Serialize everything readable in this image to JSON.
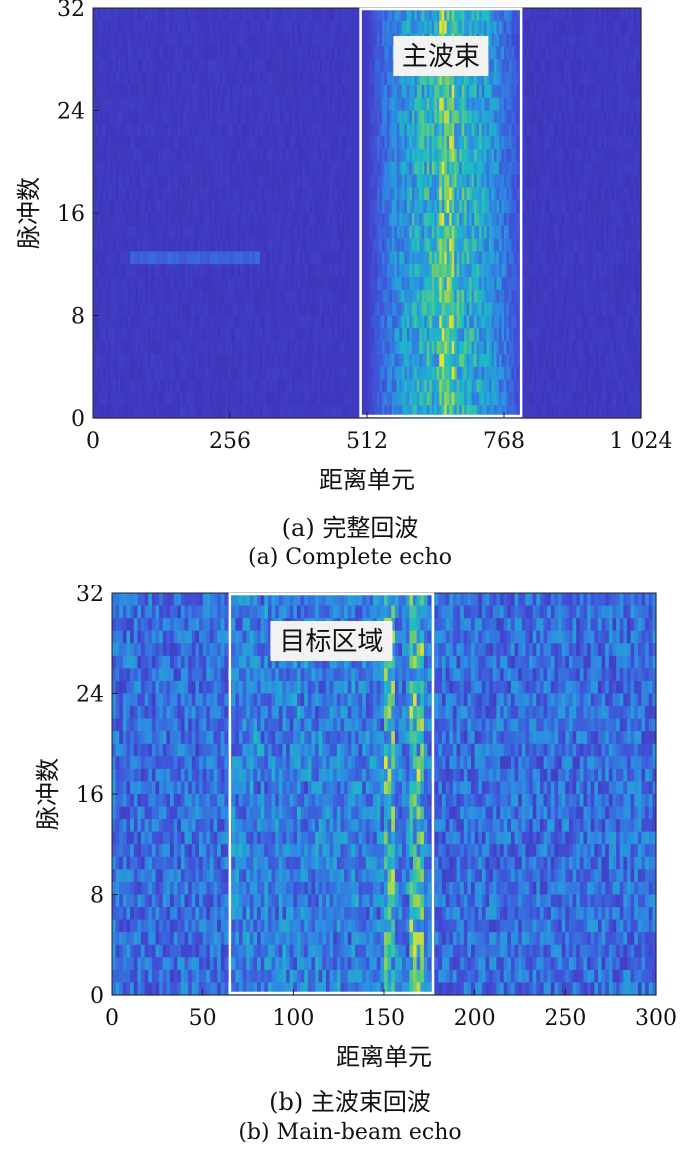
{
  "chart_data": [
    {
      "type": "heatmap",
      "xlabel": "距离单元",
      "ylabel": "脉冲数",
      "xlim": [
        0,
        1024
      ],
      "ylim": [
        0,
        32
      ],
      "x_ticks": [
        "0",
        "256",
        "512",
        "768",
        "1 024"
      ],
      "y_ticks": [
        "0",
        "8",
        "16",
        "24",
        "32"
      ],
      "annotation": "主波束",
      "box_range": [
        500,
        800
      ],
      "mainbeam_center": 660,
      "caption_cn": "(a) 完整回波",
      "caption_en": "(a) Complete echo"
    },
    {
      "type": "heatmap",
      "xlabel": "距离单元",
      "ylabel": "脉冲数",
      "xlim": [
        0,
        300
      ],
      "ylim": [
        0,
        32
      ],
      "x_ticks": [
        "0",
        "50",
        "100",
        "150",
        "200",
        "250",
        "300"
      ],
      "y_ticks": [
        "0",
        "8",
        "16",
        "24",
        "32"
      ],
      "annotation": "目标区域",
      "box_range": [
        65,
        177
      ],
      "target_columns": [
        153,
        168
      ],
      "caption_cn": "(b) 主波束回波",
      "caption_en": "(b) Main-beam echo"
    }
  ],
  "colors": {
    "colormap": [
      "#3e26a8",
      "#4150d8",
      "#2d8ee2",
      "#1dbdc2",
      "#7fcf5f",
      "#e6e137"
    ],
    "box": "#ffffff"
  }
}
